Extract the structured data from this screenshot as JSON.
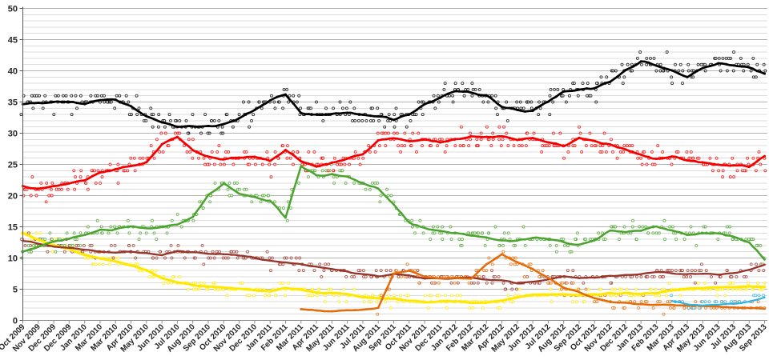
{
  "chart_data": {
    "type": "line",
    "title": "",
    "has_legend": false,
    "notes": "small open-circle scatter points = individual polls; thick lines = trend averages",
    "y_axis": {
      "min": 0,
      "max": 50,
      "major_step": 5,
      "minor_step": 1,
      "tick_labels": [
        "0",
        "5",
        "10",
        "15",
        "20",
        "25",
        "30",
        "35",
        "40",
        "45",
        "50"
      ]
    },
    "x_tick_labels": [
      "Oct 2009",
      "Nov 2009",
      "Dec 2009",
      "Dec 2009",
      "Jan 2010",
      "Mar 2010",
      "Mar 2010",
      "Apr 2010",
      "May 2010",
      "Jun 2010",
      "Jul 2010",
      "Aug 2010",
      "Sep 2010",
      "Oct 2010",
      "Nov 2010",
      "Dec 2010",
      "Jan 2011",
      "Feb 2011",
      "Mar 2011",
      "Apr 2011",
      "May 2011",
      "Jun 2011",
      "Jul 2011",
      "Aug 2011",
      "Sep 2011",
      "Oct 2011",
      "Nov 2011",
      "Dec 2011",
      "Jan 2012",
      "Feb 2012",
      "Mar 2012",
      "Apr 2012",
      "May 2012",
      "Jun 2012",
      "Jul 2012",
      "Aug 2012",
      "Sep 2012",
      "Oct 2012",
      "Nov 2012",
      "Dec 2012",
      "Jan 2013",
      "Feb 2013",
      "Mar 2013",
      "Apr 2013",
      "May 2013",
      "Jun 2013",
      "Jul 2013",
      "Aug 2013",
      "Sep 2013"
    ],
    "series": [
      {
        "name": "black",
        "color": "#000000",
        "values": [
          34.5,
          34.9,
          35.0,
          35.0,
          34.8,
          35.3,
          35.5,
          34.2,
          32.6,
          31.8,
          31.2,
          31.0,
          31.1,
          31.4,
          32.4,
          33.7,
          35.3,
          36.2,
          33.3,
          33.0,
          33.0,
          33.3,
          33.1,
          32.8,
          32.1,
          33.0,
          34.6,
          35.6,
          36.8,
          36.5,
          36.0,
          34.2,
          33.7,
          33.6,
          35.0,
          36.8,
          37.0,
          37.2,
          38.3,
          40.0,
          41.4,
          40.9,
          40.2,
          39.0,
          40.3,
          41.2,
          41.0,
          40.5,
          39.6
        ]
      },
      {
        "name": "red",
        "color": "#f40000",
        "values": [
          21.4,
          21.1,
          21.4,
          21.9,
          22.6,
          23.6,
          24.2,
          24.7,
          25.4,
          28.3,
          29.5,
          27.3,
          26.2,
          25.9,
          26.1,
          26.2,
          25.5,
          27.3,
          25.6,
          24.7,
          25.2,
          26.0,
          26.6,
          29.0,
          29.3,
          28.8,
          29.1,
          28.5,
          28.9,
          29.4,
          29.5,
          29.5,
          28.9,
          29.2,
          28.4,
          28.0,
          29.2,
          28.7,
          28.2,
          27.4,
          26.5,
          26.0,
          26.2,
          25.6,
          25.3,
          25.0,
          24.7,
          24.6,
          26.3
        ]
      },
      {
        "name": "green",
        "color": "#4ca32f",
        "values": [
          11.0,
          11.8,
          12.6,
          13.0,
          13.6,
          14.4,
          14.7,
          15.0,
          14.6,
          14.9,
          15.4,
          16.6,
          20.0,
          21.9,
          20.4,
          19.8,
          19.2,
          16.4,
          24.8,
          23.2,
          23.5,
          23.0,
          21.9,
          21.0,
          18.5,
          15.8,
          14.8,
          14.3,
          14.0,
          13.6,
          13.2,
          12.7,
          12.8,
          13.3,
          13.1,
          12.4,
          12.1,
          13.0,
          14.3,
          14.0,
          14.5,
          15.0,
          14.3,
          13.7,
          14.0,
          13.9,
          13.4,
          12.6,
          9.8
        ]
      },
      {
        "name": "yellow",
        "color": "#ffe800",
        "values": [
          14.0,
          12.8,
          12.0,
          11.4,
          10.5,
          9.9,
          9.5,
          8.8,
          8.0,
          6.8,
          6.1,
          5.7,
          5.4,
          5.2,
          5.1,
          4.9,
          4.7,
          5.1,
          4.9,
          4.5,
          4.4,
          4.2,
          3.8,
          3.6,
          3.4,
          3.2,
          3.0,
          3.1,
          3.0,
          2.9,
          2.9,
          3.1,
          3.7,
          4.2,
          4.1,
          4.1,
          4.0,
          4.2,
          4.3,
          4.4,
          4.2,
          4.4,
          4.8,
          5.0,
          5.2,
          5.3,
          5.3,
          5.5,
          5.4
        ]
      },
      {
        "name": "dark-red",
        "color": "#96352a",
        "values": [
          12.8,
          12.2,
          11.8,
          11.6,
          11.3,
          11.0,
          10.9,
          11.0,
          10.8,
          10.4,
          11.1,
          10.9,
          10.7,
          10.6,
          10.4,
          10.0,
          9.5,
          9.2,
          9.0,
          8.6,
          8.2,
          7.8,
          7.4,
          7.1,
          7.4,
          7.2,
          6.7,
          6.7,
          6.7,
          6.8,
          6.6,
          6.4,
          6.0,
          6.1,
          6.6,
          7.0,
          6.9,
          6.9,
          7.1,
          7.2,
          7.4,
          7.8,
          7.5,
          7.4,
          7.4,
          7.4,
          7.6,
          8.0,
          9.0
        ]
      },
      {
        "name": "orange",
        "color": "#e36b0a",
        "values": [
          null,
          null,
          null,
          null,
          null,
          null,
          null,
          null,
          null,
          null,
          null,
          null,
          null,
          null,
          null,
          null,
          null,
          null,
          1.8,
          1.6,
          1.5,
          1.6,
          1.7,
          2.0,
          7.5,
          8.0,
          7.0,
          6.7,
          6.8,
          6.7,
          9.0,
          10.6,
          9.3,
          8.3,
          6.8,
          5.3,
          4.5,
          3.6,
          3.0,
          2.8,
          2.6,
          2.5,
          2.5,
          2.4,
          2.3,
          2.2,
          2.1,
          2.0,
          1.9
        ]
      },
      {
        "name": "light-blue",
        "color": "#2eb2e0",
        "values": [
          null,
          null,
          null,
          null,
          null,
          null,
          null,
          null,
          null,
          null,
          null,
          null,
          null,
          null,
          null,
          null,
          null,
          null,
          null,
          null,
          null,
          null,
          null,
          null,
          null,
          null,
          null,
          null,
          null,
          null,
          null,
          null,
          null,
          null,
          null,
          null,
          null,
          null,
          null,
          null,
          null,
          null,
          3.1,
          2.6,
          2.4,
          2.6,
          2.7,
          3.0,
          3.7
        ]
      }
    ]
  }
}
